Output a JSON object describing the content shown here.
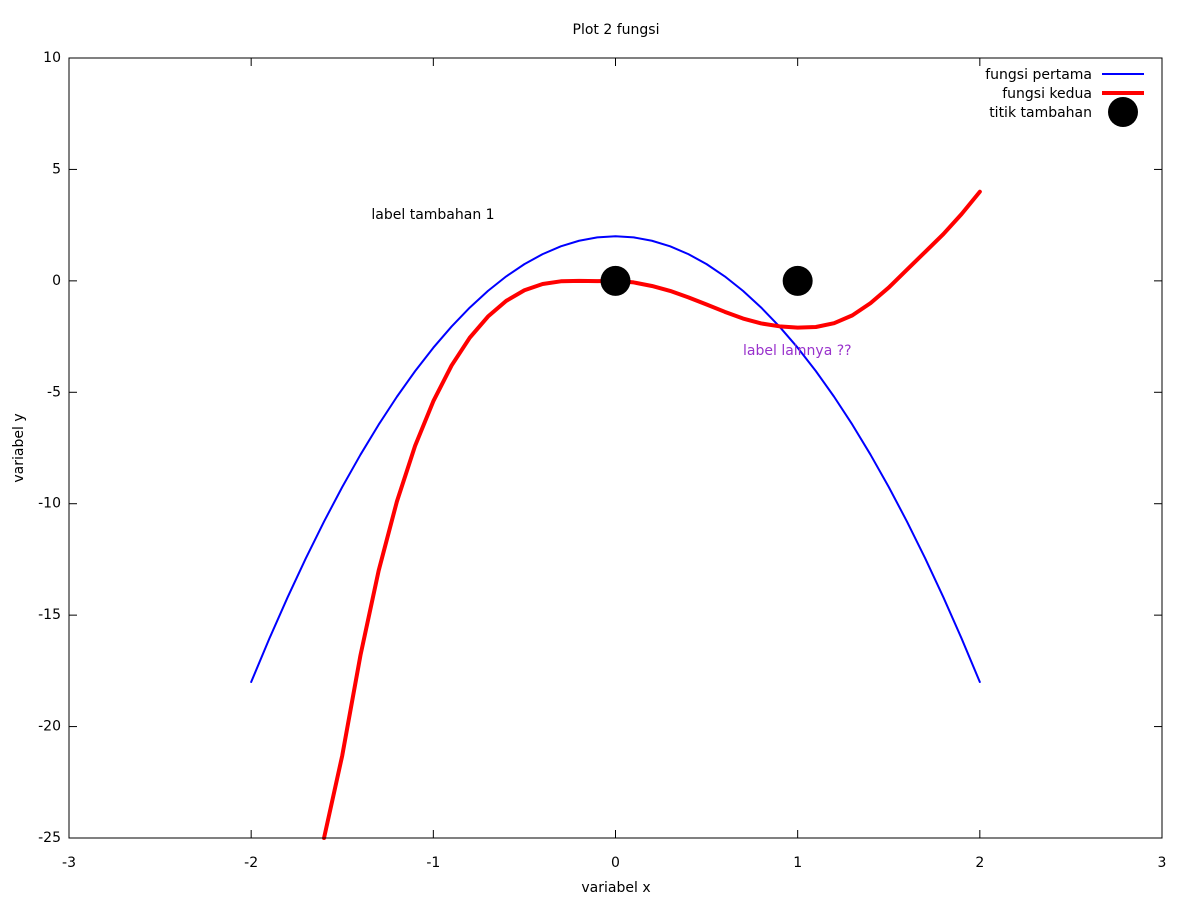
{
  "chart_data": {
    "type": "line",
    "title": "Plot 2 fungsi",
    "xlabel": "variabel x",
    "ylabel": "variabel y",
    "xlim": [
      -3,
      3
    ],
    "ylim": [
      -25,
      10
    ],
    "xticks": [
      -3,
      -2,
      -1,
      0,
      1,
      2,
      3
    ],
    "yticks": [
      -25,
      -20,
      -15,
      -10,
      -5,
      0,
      5,
      10
    ],
    "grid": false,
    "legend_position": "top-right",
    "series": [
      {
        "name": "fungsi pertama",
        "kind": "line",
        "color": "#0000ff",
        "x": [
          -2.0,
          -1.9,
          -1.8,
          -1.7,
          -1.6,
          -1.5,
          -1.4,
          -1.3,
          -1.2,
          -1.1,
          -1.0,
          -0.9,
          -0.8,
          -0.7,
          -0.6,
          -0.5,
          -0.4,
          -0.3,
          -0.2,
          -0.1,
          0.0,
          0.1,
          0.2,
          0.3,
          0.4,
          0.5,
          0.6,
          0.7,
          0.8,
          0.9,
          1.0,
          1.1,
          1.2,
          1.3,
          1.4,
          1.5,
          1.6,
          1.7,
          1.8,
          1.9,
          2.0
        ],
        "y": [
          -18.0,
          -16.05,
          -14.2,
          -12.45,
          -10.8,
          -9.25,
          -7.8,
          -6.45,
          -5.2,
          -4.05,
          -3.0,
          -2.05,
          -1.2,
          -0.45,
          0.2,
          0.75,
          1.2,
          1.55,
          1.8,
          1.95,
          2.0,
          1.95,
          1.8,
          1.55,
          1.2,
          0.75,
          0.2,
          -0.45,
          -1.2,
          -2.05,
          -3.0,
          -4.05,
          -5.2,
          -6.45,
          -7.8,
          -9.25,
          -10.8,
          -12.45,
          -14.2,
          -16.05,
          -18.0
        ]
      },
      {
        "name": "fungsi kedua",
        "kind": "line",
        "color": "#ff0000",
        "x": [
          -1.6,
          -1.5,
          -1.4,
          -1.3,
          -1.2,
          -1.1,
          -1.0,
          -0.9,
          -0.8,
          -0.7,
          -0.6,
          -0.5,
          -0.4,
          -0.3,
          -0.2,
          -0.1,
          0.0,
          0.1,
          0.2,
          0.3,
          0.4,
          0.5,
          0.6,
          0.7,
          0.8,
          0.9,
          1.0,
          1.1,
          1.2,
          1.3,
          1.4,
          1.5,
          1.6,
          1.7,
          1.8,
          1.9,
          2.0
        ],
        "y": [
          -25.0,
          -21.3,
          -16.8,
          -13.0,
          -9.9,
          -7.4,
          -5.4,
          -3.8,
          -2.55,
          -1.6,
          -0.9,
          -0.42,
          -0.14,
          -0.02,
          0.0,
          -0.01,
          0.0,
          -0.07,
          -0.23,
          -0.45,
          -0.74,
          -1.06,
          -1.39,
          -1.69,
          -1.91,
          -2.04,
          -2.1,
          -2.07,
          -1.9,
          -1.55,
          -1.0,
          -0.3,
          0.5,
          1.3,
          2.1,
          3.0,
          4.0
        ]
      },
      {
        "name": "titik tambahan",
        "kind": "points",
        "color": "#000000",
        "x": [
          0,
          1
        ],
        "y": [
          0,
          0
        ]
      }
    ],
    "annotations": [
      {
        "text": "label tambahan 1",
        "x": -1.34,
        "y": 2.95,
        "color": "#000000"
      },
      {
        "text": "label lainnya ??",
        "x": 0.7,
        "y": -3.15,
        "color": "#9932cc"
      }
    ]
  }
}
